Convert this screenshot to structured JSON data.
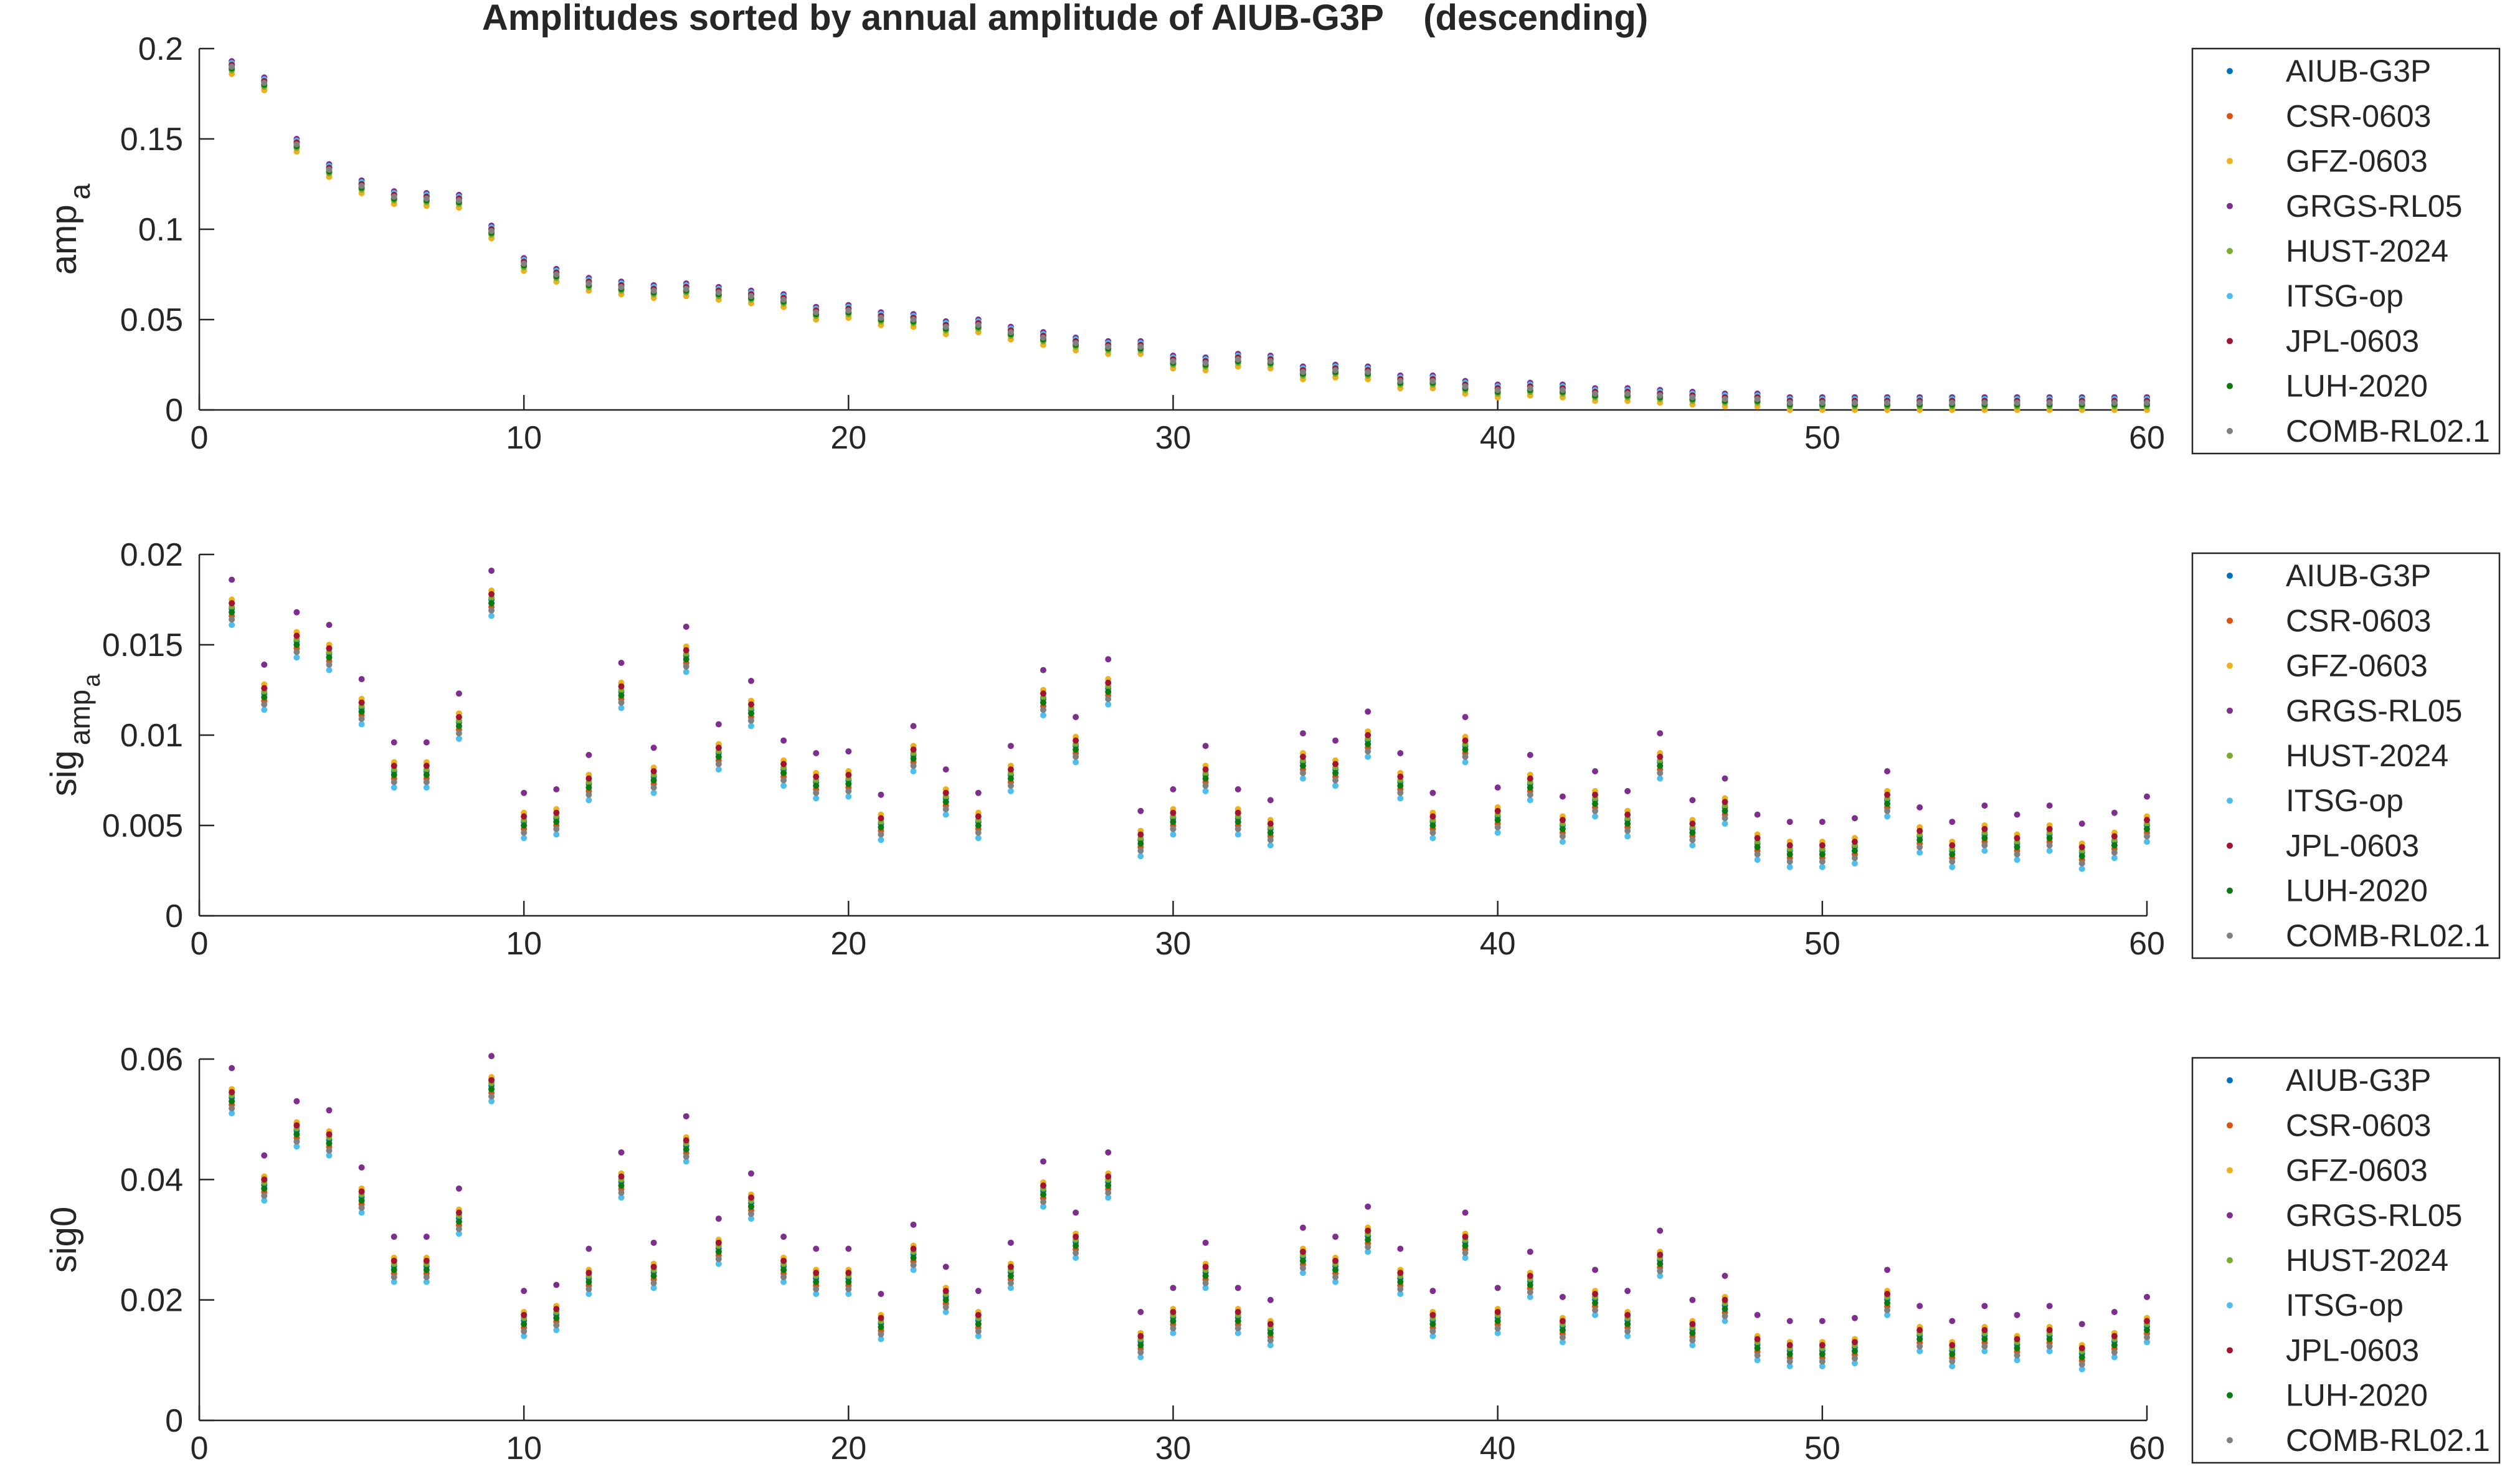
{
  "title": "Amplitudes sorted by annual amplitude of AIUB-G3P    (descending)",
  "colors": {
    "AIUB-G3P": "#0072bd",
    "CSR-0603": "#d95319",
    "GFZ-0603": "#edb120",
    "GRGS-RL05": "#7e2f8e",
    "HUST-2024": "#77ac30",
    "ITSG-op": "#4dbeee",
    "JPL-0603": "#a2142f",
    "LUH-2020": "#0b7a10",
    "COMB-RL02.1": "#808080"
  },
  "chart_data": [
    {
      "type": "scatter",
      "ylabel_main": "amp",
      "ylabel_sub": "a",
      "xlim": [
        0,
        60
      ],
      "ylim": [
        0,
        0.2
      ],
      "xticks": [
        "0",
        "10",
        "20",
        "30",
        "40",
        "50",
        "60"
      ],
      "yticks": [
        "0",
        "0.05",
        "0.1",
        "0.15",
        "0.2"
      ],
      "legend": [
        "AIUB-G3P",
        "CSR-0603",
        "GFZ-0603",
        "GRGS-RL05",
        "HUST-2024",
        "ITSG-op",
        "JPL-0603",
        "LUH-2020",
        "COMB-RL02.1"
      ],
      "legend_position": "right",
      "x": [
        1,
        2,
        3,
        4,
        5,
        6,
        7,
        8,
        9,
        10,
        11,
        12,
        13,
        14,
        15,
        16,
        17,
        18,
        19,
        20,
        21,
        22,
        23,
        24,
        25,
        26,
        27,
        28,
        29,
        30,
        31,
        32,
        33,
        34,
        35,
        36,
        37,
        38,
        39,
        40,
        41,
        42,
        43,
        44,
        45,
        46,
        47,
        48,
        49,
        50,
        51,
        52,
        53,
        54,
        55,
        56,
        57,
        58,
        59,
        60
      ],
      "base": [
        0.19,
        0.181,
        0.147,
        0.133,
        0.124,
        0.118,
        0.117,
        0.116,
        0.099,
        0.081,
        0.075,
        0.07,
        0.068,
        0.066,
        0.067,
        0.065,
        0.063,
        0.061,
        0.054,
        0.055,
        0.051,
        0.05,
        0.046,
        0.047,
        0.043,
        0.04,
        0.037,
        0.035,
        0.035,
        0.027,
        0.026,
        0.028,
        0.027,
        0.021,
        0.022,
        0.021,
        0.016,
        0.016,
        0.013,
        0.011,
        0.012,
        0.011,
        0.009,
        0.009,
        0.008,
        0.007,
        0.006,
        0.006,
        0.004,
        0.004,
        0.004,
        0.004,
        0.004,
        0.004,
        0.004,
        0.004,
        0.004,
        0.004,
        0.004,
        0.004
      ],
      "series_offsets": {
        "AIUB-G3P": 0.001,
        "CSR-0603": -0.001,
        "GFZ-0603": -0.004,
        "GRGS-RL05": 0.003,
        "HUST-2024": -0.002,
        "ITSG-op": 0.002,
        "JPL-0603": 0.001,
        "LUH-2020": -0.001,
        "COMB-RL02.1": 0.0
      }
    },
    {
      "type": "scatter",
      "ylabel_main": "sig",
      "ylabel_sub": "amp",
      "ylabel_subsub": "a",
      "xlim": [
        0,
        60
      ],
      "ylim": [
        0,
        0.02
      ],
      "xticks": [
        "0",
        "10",
        "20",
        "30",
        "40",
        "50",
        "60"
      ],
      "yticks": [
        "0",
        "0.005",
        "0.01",
        "0.015",
        "0.02"
      ],
      "legend": [
        "AIUB-G3P",
        "CSR-0603",
        "GFZ-0603",
        "GRGS-RL05",
        "HUST-2024",
        "ITSG-op",
        "JPL-0603",
        "LUH-2020",
        "COMB-RL02.1"
      ],
      "legend_position": "right",
      "x": [
        1,
        2,
        3,
        4,
        5,
        6,
        7,
        8,
        9,
        10,
        11,
        12,
        13,
        14,
        15,
        16,
        17,
        18,
        19,
        20,
        21,
        22,
        23,
        24,
        25,
        26,
        27,
        28,
        29,
        30,
        31,
        32,
        33,
        34,
        35,
        36,
        37,
        38,
        39,
        40,
        41,
        42,
        43,
        44,
        45,
        46,
        47,
        48,
        49,
        50,
        51,
        52,
        53,
        54,
        55,
        56,
        57,
        58,
        59,
        60
      ],
      "base": [
        0.0168,
        0.0121,
        0.015,
        0.0143,
        0.0113,
        0.0078,
        0.0078,
        0.0105,
        0.0173,
        0.005,
        0.0052,
        0.0071,
        0.0122,
        0.0075,
        0.0142,
        0.0088,
        0.0112,
        0.0079,
        0.0072,
        0.0073,
        0.0049,
        0.0087,
        0.0063,
        0.005,
        0.0076,
        0.0118,
        0.0092,
        0.0124,
        0.004,
        0.0052,
        0.0076,
        0.0052,
        0.0046,
        0.0083,
        0.0079,
        0.0095,
        0.0072,
        0.005,
        0.0092,
        0.0053,
        0.0071,
        0.0048,
        0.0062,
        0.0051,
        0.0083,
        0.0046,
        0.0058,
        0.0038,
        0.0034,
        0.0034,
        0.0036,
        0.0062,
        0.0042,
        0.0034,
        0.0043,
        0.0038,
        0.0043,
        0.0033,
        0.0039,
        0.0048
      ],
      "series_offsets": {
        "AIUB-G3P": 0.0002,
        "CSR-0603": -0.0002,
        "GFZ-0603": 0.0007,
        "GRGS-RL05": 0.0018,
        "HUST-2024": 0.0003,
        "ITSG-op": -0.0007,
        "JPL-0603": 0.0005,
        "LUH-2020": 0.0,
        "COMB-RL02.1": -0.0004
      }
    },
    {
      "type": "scatter",
      "ylabel_main": "sig0",
      "ylabel_sub": "",
      "xlim": [
        0,
        60
      ],
      "ylim": [
        0,
        0.06
      ],
      "xticks": [
        "0",
        "10",
        "20",
        "30",
        "40",
        "50",
        "60"
      ],
      "yticks": [
        "0",
        "0.02",
        "0.04",
        "0.06"
      ],
      "legend": [
        "AIUB-G3P",
        "CSR-0603",
        "GFZ-0603",
        "GRGS-RL05",
        "HUST-2024",
        "ITSG-op",
        "JPL-0603",
        "LUH-2020",
        "COMB-RL02.1"
      ],
      "legend_position": "right",
      "x": [
        1,
        2,
        3,
        4,
        5,
        6,
        7,
        8,
        9,
        10,
        11,
        12,
        13,
        14,
        15,
        16,
        17,
        18,
        19,
        20,
        21,
        22,
        23,
        24,
        25,
        26,
        27,
        28,
        29,
        30,
        31,
        32,
        33,
        34,
        35,
        36,
        37,
        38,
        39,
        40,
        41,
        42,
        43,
        44,
        45,
        46,
        47,
        48,
        49,
        50,
        51,
        52,
        53,
        54,
        55,
        56,
        57,
        58,
        59,
        60
      ],
      "base": [
        0.053,
        0.0385,
        0.0475,
        0.046,
        0.0365,
        0.025,
        0.025,
        0.033,
        0.055,
        0.016,
        0.017,
        0.023,
        0.039,
        0.024,
        0.045,
        0.028,
        0.0355,
        0.025,
        0.023,
        0.023,
        0.0155,
        0.027,
        0.02,
        0.016,
        0.024,
        0.0375,
        0.029,
        0.039,
        0.0125,
        0.0165,
        0.024,
        0.0165,
        0.0145,
        0.0265,
        0.025,
        0.03,
        0.023,
        0.016,
        0.029,
        0.0165,
        0.0225,
        0.015,
        0.0195,
        0.016,
        0.026,
        0.0145,
        0.0185,
        0.012,
        0.011,
        0.011,
        0.0115,
        0.0195,
        0.0135,
        0.011,
        0.0135,
        0.012,
        0.0135,
        0.0105,
        0.0125,
        0.015
      ],
      "series_offsets": {
        "AIUB-G3P": 0.0006,
        "CSR-0603": -0.0006,
        "GFZ-0603": 0.002,
        "GRGS-RL05": 0.0055,
        "HUST-2024": 0.001,
        "ITSG-op": -0.002,
        "JPL-0603": 0.0015,
        "LUH-2020": 0.0,
        "COMB-RL02.1": -0.0012
      }
    }
  ]
}
